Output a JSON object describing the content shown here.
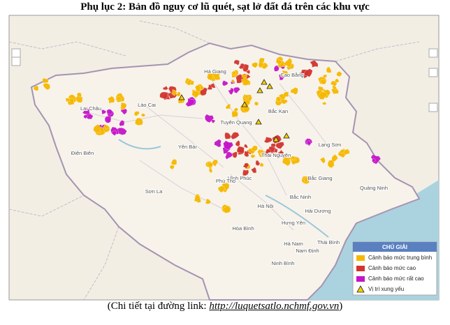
{
  "header": {
    "title": "Phụ lục 2: Bản đồ nguy cơ lũ quét, sạt lở đất đá trên các khu vực"
  },
  "places": [
    "Hà Giang",
    "Cao Bằng",
    "Lào Cai",
    "Bắc Kạn",
    "Tuyên Quang",
    "Lai Châu",
    "Lạng Sơn",
    "Điện Biên",
    "Yên Bái",
    "Thái Nguyên",
    "Vĩnh Phúc",
    "Phú Thọ",
    "Bắc Giang",
    "Quảng Ninh",
    "Sơn La",
    "Hà Nội",
    "Bắc Ninh",
    "Hải Dương",
    "Hòa Bình",
    "Hưng Yên",
    "Hà Nam",
    "Thái Bình",
    "Nam Định",
    "Ninh Bình"
  ],
  "legend": {
    "title": "CHÚ GIẢI",
    "items": [
      {
        "label": "Cảnh báo mức trung bình",
        "color": "#f5b800"
      },
      {
        "label": "Cảnh báo mức cao",
        "color": "#d2342e"
      },
      {
        "label": "Cảnh báo mức rất cao",
        "color": "#c415c9"
      },
      {
        "label": "Vị trí xung yếu",
        "color": "#f5d000"
      }
    ]
  },
  "caption": {
    "prefix": "(Chi tiết tại đường link: ",
    "link": "http://luquetsatlo.nchmf.gov.vn",
    "suffix": ")"
  }
}
